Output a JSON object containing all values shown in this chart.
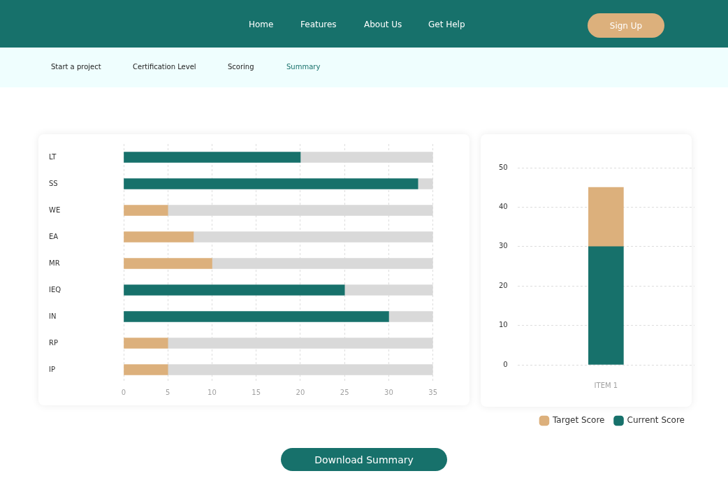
{
  "chart_data": [
    {
      "type": "other",
      "annotations": [
        "Home",
        "Features",
        "About Us",
        "Get Help",
        "Sign Up",
        "Start a project",
        "Certification Level",
        "Scoring",
        "Summary",
        "Download Summary"
      ]
    },
    {
      "type": "bar",
      "orientation": "horizontal",
      "stacked": true,
      "categories": [
        "LT",
        "SS",
        "WE",
        "EA",
        "MR",
        "IEQ",
        "IN",
        "RP",
        "IP"
      ],
      "series": [
        {
          "color": "#17716b",
          "values": [
            20,
            33.3,
            null,
            null,
            null,
            25,
            30,
            null,
            null
          ]
        },
        {
          "color": "#dcb07c",
          "values": [
            null,
            null,
            5,
            7.9,
            10,
            null,
            null,
            5,
            5
          ]
        },
        {
          "color": "#d9d9d9",
          "values": [
            15,
            1.7,
            30,
            27.1,
            25,
            10,
            5,
            30,
            30
          ]
        }
      ],
      "xlim": [
        0,
        35
      ],
      "xticks": [
        0,
        5,
        10,
        15,
        20,
        25,
        30,
        35
      ],
      "grid": "x"
    },
    {
      "type": "bar",
      "stacked": true,
      "categories": [
        "ITEM 1"
      ],
      "series": [
        {
          "name": "Current Score",
          "color": "#17716b",
          "values": [
            30
          ]
        },
        {
          "name": "Target Score",
          "color": "#dcb07c",
          "values": [
            15
          ]
        }
      ],
      "ylim": [
        0,
        50
      ],
      "yticks": [
        0,
        10,
        20,
        30,
        40,
        50
      ],
      "grid": "y",
      "legend": "bottom right"
    }
  ]
}
